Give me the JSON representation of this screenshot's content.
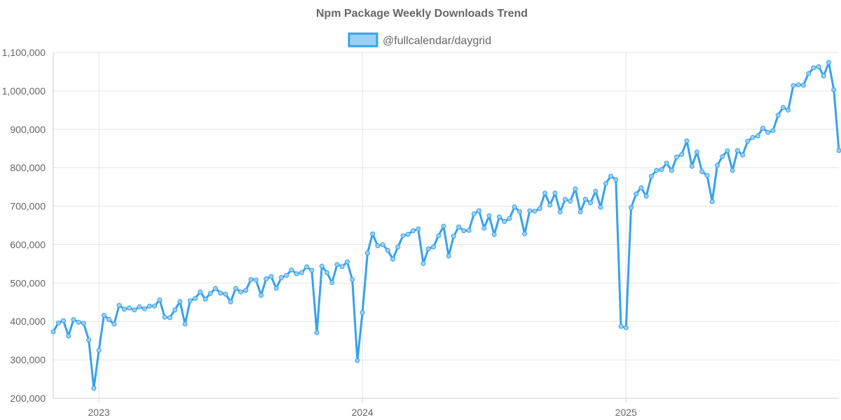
{
  "chart_data": {
    "type": "line",
    "title": "Npm Package Weekly Downloads Trend",
    "xlabel": "",
    "ylabel": "",
    "ylim": [
      200000,
      1100000
    ],
    "y_ticks": [
      200000,
      300000,
      400000,
      500000,
      600000,
      700000,
      800000,
      900000,
      1000000,
      1100000
    ],
    "y_tick_labels": [
      "200,000",
      "300,000",
      "400,000",
      "500,000",
      "600,000",
      "700,000",
      "800,000",
      "900,000",
      "1,000,000",
      "1,100,000"
    ],
    "x_ticks": [
      {
        "label": "2023",
        "week_index": 9
      },
      {
        "label": "2024",
        "week_index": 61
      },
      {
        "label": "2025",
        "week_index": 113
      }
    ],
    "grid": true,
    "legend_position": "top-center",
    "series": [
      {
        "name": "@fullcalendar/daygrid",
        "color": "#36a2eb",
        "fill": "#9ad0f5",
        "values": [
          373000,
          396000,
          402000,
          362000,
          405000,
          398000,
          395000,
          352000,
          226000,
          325000,
          416000,
          405000,
          393000,
          442000,
          432000,
          435000,
          430000,
          438000,
          433000,
          440000,
          440000,
          456000,
          411000,
          410000,
          430000,
          452000,
          393000,
          454000,
          460000,
          477000,
          458000,
          473000,
          486000,
          474000,
          471000,
          451000,
          486000,
          477000,
          481000,
          509000,
          508000,
          468000,
          511000,
          517000,
          486000,
          514000,
          520000,
          534000,
          524000,
          527000,
          542000,
          533000,
          371000,
          544000,
          527000,
          501000,
          548000,
          543000,
          555000,
          509000,
          298000,
          423000,
          578000,
          628000,
          597000,
          600000,
          585000,
          562000,
          594000,
          623000,
          627000,
          636000,
          641000,
          551000,
          589000,
          594000,
          623000,
          648000,
          570000,
          622000,
          646000,
          636000,
          637000,
          680000,
          688000,
          643000,
          675000,
          626000,
          672000,
          660000,
          668000,
          698000,
          686000,
          628000,
          688000,
          687000,
          694000,
          734000,
          703000,
          734000,
          685000,
          718000,
          713000,
          745000,
          685000,
          718000,
          709000,
          739000,
          697000,
          759000,
          778000,
          769000,
          387000,
          384000,
          696000,
          732000,
          748000,
          726000,
          778000,
          793000,
          795000,
          812000,
          793000,
          828000,
          835000,
          870000,
          804000,
          841000,
          790000,
          780000,
          712000,
          806000,
          829000,
          844000,
          793000,
          845000,
          833000,
          869000,
          879000,
          883000,
          903000,
          892000,
          897000,
          937000,
          957000,
          950000,
          1014000,
          1016000,
          1015000,
          1045000,
          1060000,
          1063000,
          1039000,
          1074000,
          1003000,
          845000
        ]
      }
    ]
  }
}
